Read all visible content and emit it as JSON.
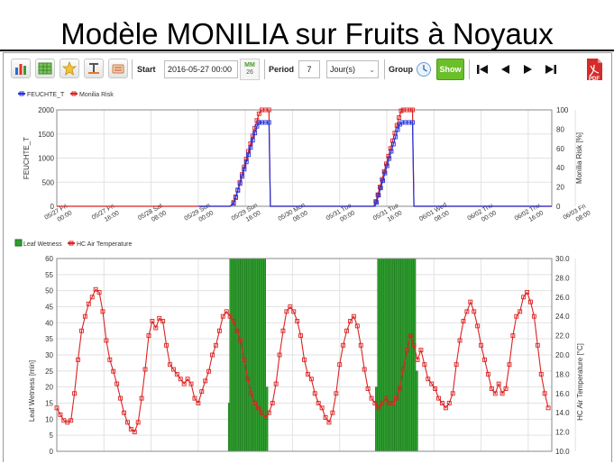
{
  "page_title": "Modèle MONILIA sur Fruits à Noyaux",
  "toolbar": {
    "icons": [
      "bar-chart-icon",
      "table-icon",
      "star-icon",
      "text-icon",
      "layers-icon"
    ],
    "start_label": "Start",
    "start_value": "2016-05-27 00:00",
    "calendar_day": "26",
    "calendar_month": "MM",
    "period_label": "Period",
    "period_value": "7",
    "period_unit": "Jour(s)",
    "group_label": "Group",
    "show_label": "Show",
    "pdf_label": "PDF"
  },
  "chart_data": [
    {
      "type": "line",
      "x_unit": "days since 2016-05-27 00:00 (chart tick labels shown in x_tick_labels)",
      "x_tick_labels": [
        [
          "05/27 Fri",
          "00:00"
        ],
        [
          "05/27 Fri",
          "16:00"
        ],
        [
          "05/28 Sat",
          "08:00"
        ],
        [
          "05/29 Sun",
          "00:00"
        ],
        [
          "05/29 Sun",
          "16:00"
        ],
        [
          "05/30 Mon",
          "08:00"
        ],
        [
          "05/31 Tue",
          "00:00"
        ],
        [
          "05/31 Tue",
          "16:00"
        ],
        [
          "06/01 Wed",
          "08:00"
        ],
        [
          "06/02 Thu",
          "00:00"
        ],
        [
          "06/02 Thu",
          "16:00"
        ],
        [
          "06/03 Fri",
          "08:00"
        ]
      ],
      "legend": [
        "FEUCHTE_T",
        "Monilia Risk"
      ],
      "ylabel_left": "FEUCHTE_T",
      "ylabel_right": "Monilia Risk [%]",
      "ylim_left": [
        0,
        2000
      ],
      "yticks_left": [
        0,
        500,
        1000,
        1500,
        2000
      ],
      "ylim_right": [
        0,
        100
      ],
      "yticks_right": [
        0,
        20,
        40,
        60,
        80,
        100
      ],
      "series": [
        {
          "name": "FEUCHTE_T",
          "color": "#2233dd",
          "points": [
            [
              2.0,
              0
            ],
            [
              2.45,
              0
            ],
            [
              2.5,
              60
            ],
            [
              2.53,
              180
            ],
            [
              2.56,
              330
            ],
            [
              2.59,
              470
            ],
            [
              2.62,
              620
            ],
            [
              2.65,
              770
            ],
            [
              2.68,
              920
            ],
            [
              2.71,
              1070
            ],
            [
              2.74,
              1220
            ],
            [
              2.77,
              1370
            ],
            [
              2.8,
              1520
            ],
            [
              2.83,
              1660
            ],
            [
              2.86,
              1740
            ],
            [
              2.9,
              1740
            ],
            [
              2.95,
              1740
            ],
            [
              3.0,
              1740
            ],
            [
              3.02,
              0
            ],
            [
              4.0,
              0
            ],
            [
              4.5,
              0
            ],
            [
              4.52,
              80
            ],
            [
              4.55,
              230
            ],
            [
              4.58,
              380
            ],
            [
              4.61,
              530
            ],
            [
              4.64,
              690
            ],
            [
              4.67,
              840
            ],
            [
              4.7,
              990
            ],
            [
              4.73,
              1140
            ],
            [
              4.76,
              1290
            ],
            [
              4.79,
              1440
            ],
            [
              4.82,
              1590
            ],
            [
              4.85,
              1700
            ],
            [
              4.88,
              1740
            ],
            [
              4.93,
              1740
            ],
            [
              4.98,
              1740
            ],
            [
              5.03,
              1740
            ],
            [
              5.05,
              0
            ],
            [
              6.0,
              0
            ],
            [
              7.0,
              0
            ]
          ]
        },
        {
          "name": "Monilia Risk",
          "color": "#dd2222",
          "points": [
            [
              0,
              0
            ],
            [
              2.45,
              0
            ],
            [
              2.5,
              4
            ],
            [
              2.53,
              10
            ],
            [
              2.56,
              17
            ],
            [
              2.59,
              25
            ],
            [
              2.62,
              33
            ],
            [
              2.65,
              41
            ],
            [
              2.68,
              49
            ],
            [
              2.71,
              57
            ],
            [
              2.74,
              65
            ],
            [
              2.77,
              73
            ],
            [
              2.8,
              81
            ],
            [
              2.83,
              89
            ],
            [
              2.86,
              96
            ],
            [
              2.9,
              100
            ],
            [
              2.95,
              100
            ],
            [
              3.0,
              100
            ],
            [
              3.02,
              0
            ],
            [
              4.48,
              0
            ],
            [
              4.51,
              5
            ],
            [
              4.54,
              12
            ],
            [
              4.57,
              20
            ],
            [
              4.6,
              28
            ],
            [
              4.63,
              36
            ],
            [
              4.66,
              44
            ],
            [
              4.69,
              52
            ],
            [
              4.72,
              60
            ],
            [
              4.75,
              68
            ],
            [
              4.78,
              76
            ],
            [
              4.81,
              84
            ],
            [
              4.84,
              92
            ],
            [
              4.87,
              99
            ],
            [
              4.9,
              100
            ],
            [
              4.95,
              100
            ],
            [
              5.0,
              100
            ],
            [
              5.03,
              100
            ],
            [
              5.05,
              0
            ],
            [
              7.0,
              0
            ]
          ]
        }
      ]
    },
    {
      "type": "bar+line",
      "legend": [
        "Leaf Wetness",
        "HC Air Temperature"
      ],
      "ylabel_left": "Leaf Wetness [min]",
      "ylabel_right": "HC Air Temperature [°C]",
      "ylim_left": [
        0,
        60
      ],
      "yticks_left": [
        0,
        5,
        10,
        15,
        20,
        25,
        30,
        35,
        40,
        45,
        50,
        55,
        60
      ],
      "ylim_right": [
        10,
        30
      ],
      "yticks_right": [
        10,
        12,
        14,
        16,
        18,
        20,
        22,
        24,
        26,
        28,
        30
      ],
      "leaf_wetness": {
        "name": "Leaf Wetness",
        "color": "#2f9e2f",
        "bars": [
          [
            2.44,
            15
          ],
          [
            2.46,
            60
          ],
          [
            2.49,
            60
          ],
          [
            2.52,
            60
          ],
          [
            2.55,
            60
          ],
          [
            2.58,
            60
          ],
          [
            2.61,
            60
          ],
          [
            2.64,
            60
          ],
          [
            2.67,
            60
          ],
          [
            2.7,
            60
          ],
          [
            2.73,
            60
          ],
          [
            2.76,
            60
          ],
          [
            2.79,
            60
          ],
          [
            2.82,
            60
          ],
          [
            2.85,
            60
          ],
          [
            2.88,
            60
          ],
          [
            2.91,
            60
          ],
          [
            2.94,
            60
          ],
          [
            2.97,
            20
          ],
          [
            4.52,
            20
          ],
          [
            4.55,
            60
          ],
          [
            4.58,
            60
          ],
          [
            4.61,
            60
          ],
          [
            4.64,
            60
          ],
          [
            4.67,
            60
          ],
          [
            4.7,
            60
          ],
          [
            4.73,
            60
          ],
          [
            4.76,
            60
          ],
          [
            4.79,
            60
          ],
          [
            4.82,
            60
          ],
          [
            4.85,
            60
          ],
          [
            4.88,
            60
          ],
          [
            4.91,
            60
          ],
          [
            4.94,
            60
          ],
          [
            4.97,
            60
          ],
          [
            5.0,
            60
          ],
          [
            5.03,
            60
          ],
          [
            5.06,
            60
          ],
          [
            5.09,
            25
          ]
        ]
      },
      "temperature": {
        "name": "HC Air Temperature",
        "color": "#dd2222",
        "points": [
          [
            0,
            14.5
          ],
          [
            0.05,
            13.8
          ],
          [
            0.1,
            13.2
          ],
          [
            0.15,
            13.0
          ],
          [
            0.2,
            13.2
          ],
          [
            0.25,
            16.0
          ],
          [
            0.3,
            19.5
          ],
          [
            0.35,
            22.5
          ],
          [
            0.4,
            24.0
          ],
          [
            0.45,
            25.3
          ],
          [
            0.5,
            26.0
          ],
          [
            0.55,
            26.8
          ],
          [
            0.6,
            26.5
          ],
          [
            0.65,
            24.5
          ],
          [
            0.7,
            21.5
          ],
          [
            0.75,
            19.5
          ],
          [
            0.8,
            18.3
          ],
          [
            0.85,
            17.0
          ],
          [
            0.9,
            15.5
          ],
          [
            0.95,
            14.0
          ],
          [
            1.0,
            13.0
          ],
          [
            1.05,
            12.3
          ],
          [
            1.1,
            12.0
          ],
          [
            1.15,
            13.0
          ],
          [
            1.2,
            15.5
          ],
          [
            1.25,
            18.5
          ],
          [
            1.3,
            22.0
          ],
          [
            1.35,
            23.5
          ],
          [
            1.4,
            22.8
          ],
          [
            1.45,
            23.8
          ],
          [
            1.5,
            23.5
          ],
          [
            1.55,
            21.0
          ],
          [
            1.6,
            19.0
          ],
          [
            1.65,
            18.5
          ],
          [
            1.7,
            18.0
          ],
          [
            1.75,
            17.5
          ],
          [
            1.8,
            17.0
          ],
          [
            1.85,
            17.5
          ],
          [
            1.9,
            17.0
          ],
          [
            1.95,
            15.5
          ],
          [
            2.0,
            15.0
          ],
          [
            2.05,
            16.2
          ],
          [
            2.1,
            17.3
          ],
          [
            2.15,
            18.3
          ],
          [
            2.2,
            20.0
          ],
          [
            2.25,
            21.0
          ],
          [
            2.3,
            22.5
          ],
          [
            2.35,
            24.0
          ],
          [
            2.4,
            24.5
          ],
          [
            2.45,
            24.0
          ],
          [
            2.5,
            23.5
          ],
          [
            2.55,
            22.5
          ],
          [
            2.6,
            21.5
          ],
          [
            2.65,
            19.5
          ],
          [
            2.7,
            17.5
          ],
          [
            2.75,
            16.0
          ],
          [
            2.8,
            15.0
          ],
          [
            2.85,
            14.5
          ],
          [
            2.9,
            14.0
          ],
          [
            2.95,
            13.5
          ],
          [
            3.0,
            14.0
          ],
          [
            3.05,
            15.0
          ],
          [
            3.1,
            17.0
          ],
          [
            3.15,
            20.0
          ],
          [
            3.2,
            22.5
          ],
          [
            3.25,
            24.5
          ],
          [
            3.3,
            25.0
          ],
          [
            3.35,
            24.5
          ],
          [
            3.4,
            23.5
          ],
          [
            3.45,
            22.0
          ],
          [
            3.5,
            19.5
          ],
          [
            3.55,
            18.0
          ],
          [
            3.6,
            17.5
          ],
          [
            3.65,
            16.0
          ],
          [
            3.7,
            15.0
          ],
          [
            3.75,
            14.5
          ],
          [
            3.8,
            13.5
          ],
          [
            3.85,
            13.0
          ],
          [
            3.9,
            14.0
          ],
          [
            3.95,
            16.0
          ],
          [
            4.0,
            19.0
          ],
          [
            4.05,
            21.0
          ],
          [
            4.1,
            22.5
          ],
          [
            4.15,
            23.5
          ],
          [
            4.2,
            24.0
          ],
          [
            4.25,
            23.0
          ],
          [
            4.3,
            21.0
          ],
          [
            4.35,
            18.5
          ],
          [
            4.4,
            16.5
          ],
          [
            4.45,
            15.5
          ],
          [
            4.5,
            15.0
          ],
          [
            4.55,
            14.5
          ],
          [
            4.6,
            15.0
          ],
          [
            4.65,
            15.5
          ],
          [
            4.7,
            15.0
          ],
          [
            4.75,
            15.0
          ],
          [
            4.8,
            15.5
          ],
          [
            4.85,
            16.5
          ],
          [
            4.9,
            18.5
          ],
          [
            4.95,
            20.5
          ],
          [
            5.0,
            22.0
          ],
          [
            5.05,
            21.0
          ],
          [
            5.1,
            19.5
          ],
          [
            5.15,
            20.5
          ],
          [
            5.2,
            19.0
          ],
          [
            5.25,
            17.5
          ],
          [
            5.3,
            17.0
          ],
          [
            5.35,
            16.5
          ],
          [
            5.4,
            15.5
          ],
          [
            5.45,
            15.0
          ],
          [
            5.5,
            14.5
          ],
          [
            5.55,
            15.0
          ],
          [
            5.6,
            16.0
          ],
          [
            5.65,
            19.0
          ],
          [
            5.7,
            21.5
          ],
          [
            5.75,
            23.5
          ],
          [
            5.8,
            24.5
          ],
          [
            5.85,
            25.5
          ],
          [
            5.9,
            24.5
          ],
          [
            5.95,
            23.0
          ],
          [
            6.0,
            21.0
          ],
          [
            6.05,
            19.5
          ],
          [
            6.1,
            18.0
          ],
          [
            6.15,
            16.5
          ],
          [
            6.2,
            16.0
          ],
          [
            6.25,
            17.0
          ],
          [
            6.3,
            16.0
          ],
          [
            6.35,
            16.5
          ],
          [
            6.4,
            19.0
          ],
          [
            6.45,
            22.0
          ],
          [
            6.5,
            24.0
          ],
          [
            6.55,
            24.5
          ],
          [
            6.6,
            26.0
          ],
          [
            6.65,
            26.5
          ],
          [
            6.7,
            25.5
          ],
          [
            6.75,
            24.0
          ],
          [
            6.8,
            21.0
          ],
          [
            6.85,
            18.0
          ],
          [
            6.9,
            16.0
          ],
          [
            6.95,
            14.5
          ]
        ]
      }
    }
  ]
}
